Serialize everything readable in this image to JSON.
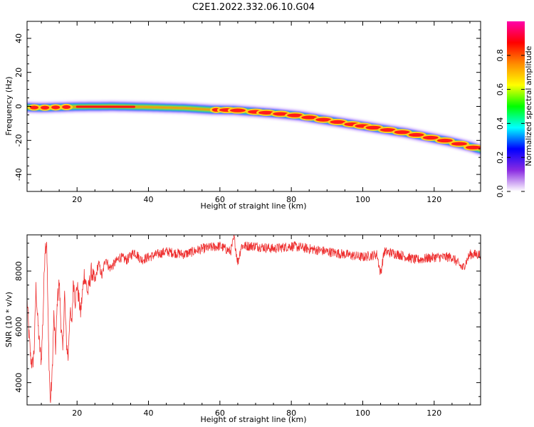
{
  "title": "C2E1.2022.332.06.10.G04",
  "chart_data": [
    {
      "type": "heatmap",
      "xlabel": "Height of straight line (km)",
      "ylabel": "Frequency (Hz)",
      "xlim": [
        6,
        133
      ],
      "ylim": [
        -50,
        50
      ],
      "xticks": [
        20,
        40,
        60,
        80,
        100,
        120
      ],
      "yticks": [
        -40,
        -20,
        0,
        20,
        40
      ],
      "grid": false,
      "ridge": {
        "x": [
          6,
          10,
          20,
          30,
          40,
          50,
          58,
          64,
          70,
          76,
          82,
          88,
          94,
          100,
          106,
          112,
          118,
          124,
          130,
          133
        ],
        "y": [
          -0.5,
          -0.8,
          -0.2,
          0,
          -0.4,
          -1.0,
          -2.0,
          -2.2,
          -3.2,
          -4.2,
          -5.5,
          -7.5,
          -9.5,
          -11.5,
          -13.5,
          -15.5,
          -18,
          -20.5,
          -23.5,
          -25.5
        ]
      },
      "colorbar": {
        "label": "Normalized spectral amplitude",
        "range": [
          0,
          1
        ],
        "ticks": [
          "0.0",
          "0.2",
          "0.4",
          "0.6",
          "0.8"
        ],
        "colors": [
          "#ffffff",
          "#8a2be2",
          "#0000ff",
          "#00ffff",
          "#00ff00",
          "#ffff00",
          "#ff8c00",
          "#ff0000",
          "#ff00aa"
        ]
      }
    },
    {
      "type": "line",
      "xlabel": "Height of straight line (km)",
      "ylabel": "SNR (10 * v/v)",
      "xlim": [
        6,
        133
      ],
      "ylim": [
        3200,
        9300
      ],
      "xticks": [
        20,
        40,
        60,
        80,
        100,
        120
      ],
      "yticks": [
        4000,
        6000,
        8000
      ],
      "color": "#ee3030",
      "series": [
        {
          "x": [
            6,
            6.5,
            7,
            7.5,
            8,
            8.5,
            9,
            9.5,
            10,
            10.5,
            11,
            11.5,
            12,
            12.5,
            13,
            13.5,
            14,
            14.5,
            15,
            15.5,
            16,
            16.5,
            17,
            17.5,
            18,
            18.5,
            19,
            19.5,
            20,
            21,
            22,
            23,
            24,
            25,
            26,
            27,
            28,
            29,
            30,
            32,
            34,
            36,
            38,
            40,
            45,
            50,
            55,
            60,
            63,
            64,
            65,
            66,
            70,
            75,
            80,
            85,
            90,
            95,
            100,
            104,
            105,
            106,
            110,
            115,
            120,
            125,
            128,
            130,
            133
          ],
          "values": [
            7000,
            5800,
            4900,
            4600,
            5200,
            7400,
            6200,
            5300,
            4800,
            6500,
            8800,
            9100,
            5500,
            3250,
            4200,
            6400,
            5200,
            7000,
            7600,
            6100,
            5100,
            7200,
            5500,
            4900,
            6600,
            6000,
            7700,
            6900,
            7500,
            6500,
            7900,
            7200,
            8000,
            7600,
            8300,
            7800,
            8500,
            8100,
            8200,
            8500,
            8400,
            8700,
            8400,
            8500,
            8700,
            8600,
            8800,
            8900,
            8700,
            9200,
            8300,
            8900,
            8900,
            8800,
            8900,
            8800,
            8700,
            8600,
            8500,
            8600,
            7900,
            8700,
            8600,
            8400,
            8500,
            8500,
            8100,
            8600,
            8600
          ]
        }
      ]
    }
  ]
}
